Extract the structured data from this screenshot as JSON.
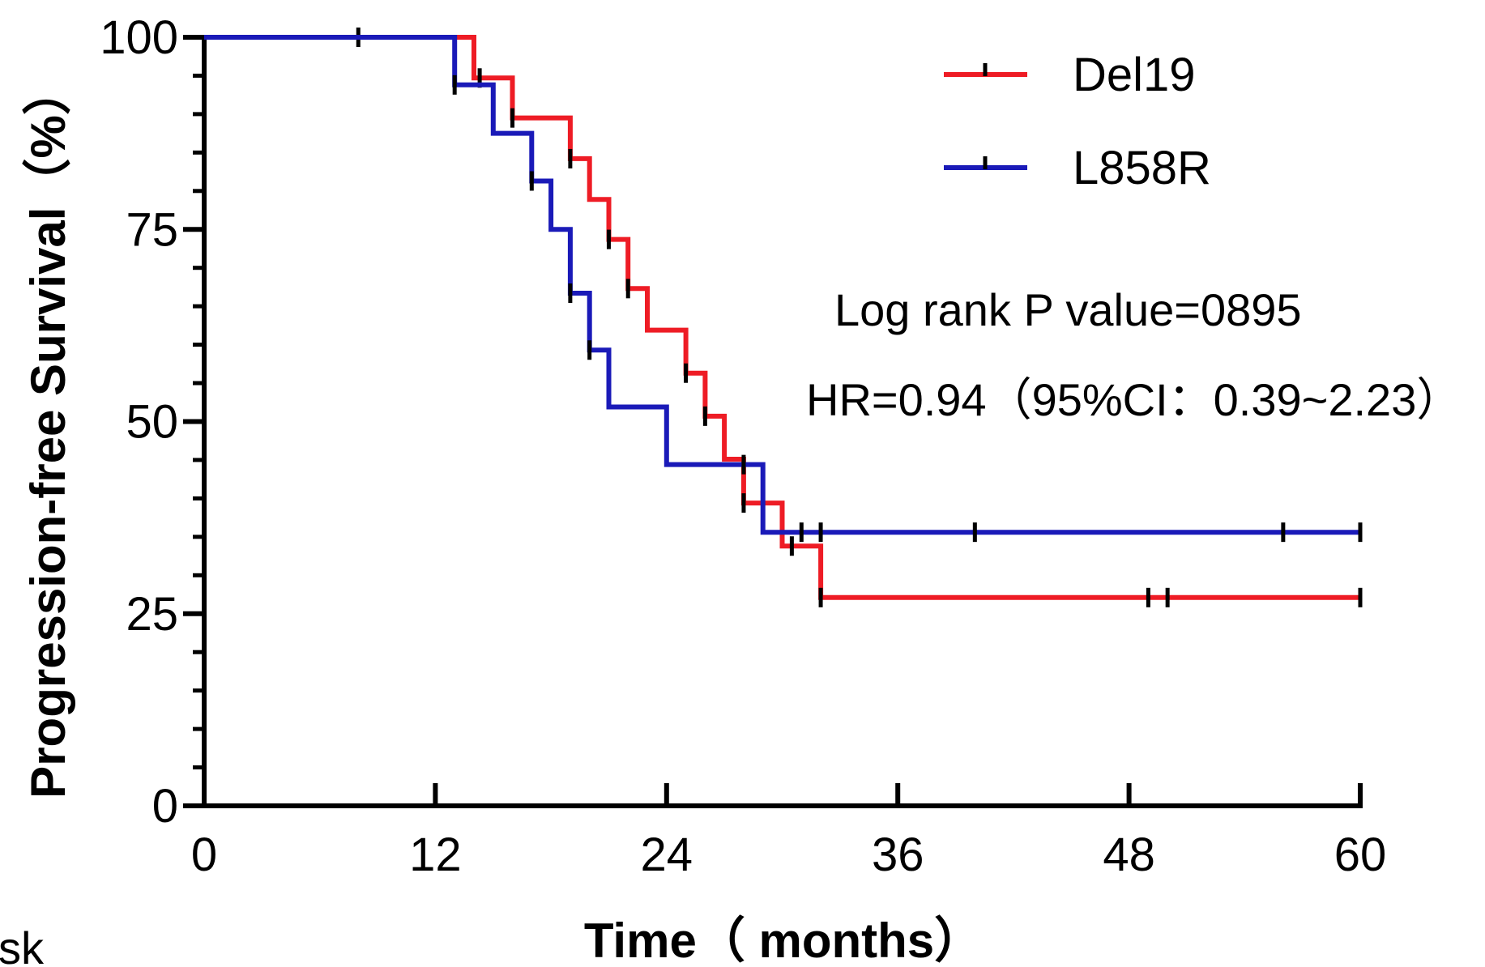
{
  "chart_data": {
    "type": "line",
    "subtype": "kaplan-meier-step",
    "title": "",
    "xlabel": "Time（ months）",
    "ylabel": "Progression-free Survival（%）",
    "xlim": [
      0,
      60
    ],
    "ylim": [
      0,
      100
    ],
    "xticks": [
      0,
      12,
      24,
      36,
      48,
      60
    ],
    "yticks": [
      0,
      25,
      50,
      75,
      100
    ],
    "x_minor_ticks": [],
    "y_minor_step": 5,
    "grid": false,
    "legend_position": "top-right",
    "series": [
      {
        "name": "Del19",
        "color": "#ee1c25",
        "steps": [
          [
            0,
            100
          ],
          [
            14,
            100
          ],
          [
            14,
            94.7
          ],
          [
            16,
            94.7
          ],
          [
            16,
            89.5
          ],
          [
            19,
            89.5
          ],
          [
            19,
            84.2
          ],
          [
            20,
            84.2
          ],
          [
            20,
            78.9
          ],
          [
            21,
            78.9
          ],
          [
            21,
            73.7
          ],
          [
            22,
            73.7
          ],
          [
            22,
            67.3
          ],
          [
            23,
            67.3
          ],
          [
            23,
            61.9
          ],
          [
            25,
            61.9
          ],
          [
            25,
            56.3
          ],
          [
            26,
            56.3
          ],
          [
            26,
            50.7
          ],
          [
            27,
            50.7
          ],
          [
            27,
            45.1
          ],
          [
            28,
            45.1
          ],
          [
            28,
            39.4
          ],
          [
            30,
            39.4
          ],
          [
            30,
            33.8
          ],
          [
            32,
            33.8
          ],
          [
            32,
            27.1
          ],
          [
            60,
            27.1
          ]
        ],
        "censored": [
          [
            8,
            100
          ],
          [
            14.3,
            94.7
          ],
          [
            16,
            89.5
          ],
          [
            19,
            84.2
          ],
          [
            21,
            73.7
          ],
          [
            22,
            67.3
          ],
          [
            25,
            56.3
          ],
          [
            26,
            50.7
          ],
          [
            28,
            39.4
          ],
          [
            30.5,
            33.8
          ],
          [
            32,
            27.1
          ],
          [
            49,
            27.1
          ],
          [
            50,
            27.1
          ],
          [
            60,
            27.1
          ]
        ]
      },
      {
        "name": "L858R",
        "color": "#1a1ab8",
        "steps": [
          [
            0,
            100
          ],
          [
            13,
            100
          ],
          [
            13,
            93.8
          ],
          [
            15,
            93.8
          ],
          [
            15,
            87.5
          ],
          [
            17,
            87.5
          ],
          [
            17,
            81.3
          ],
          [
            18,
            81.3
          ],
          [
            18,
            75.0
          ],
          [
            19,
            75.0
          ],
          [
            19,
            66.7
          ],
          [
            20,
            66.7
          ],
          [
            20,
            59.3
          ],
          [
            21,
            59.3
          ],
          [
            21,
            51.9
          ],
          [
            24,
            51.9
          ],
          [
            24,
            44.4
          ],
          [
            29,
            44.4
          ],
          [
            29,
            35.6
          ],
          [
            60,
            35.6
          ]
        ],
        "censored": [
          [
            13,
            93.8
          ],
          [
            17,
            81.3
          ],
          [
            19,
            66.7
          ],
          [
            20,
            59.3
          ],
          [
            28,
            44.4
          ],
          [
            31,
            35.6
          ],
          [
            32,
            35.6
          ],
          [
            40,
            35.6
          ],
          [
            56,
            35.6
          ],
          [
            60,
            35.6
          ]
        ]
      }
    ],
    "annotations": [
      "Log rank P value=0895",
      "HR=0.94（95%CI：0.39~2.23）"
    ],
    "stray_text": "sk"
  }
}
